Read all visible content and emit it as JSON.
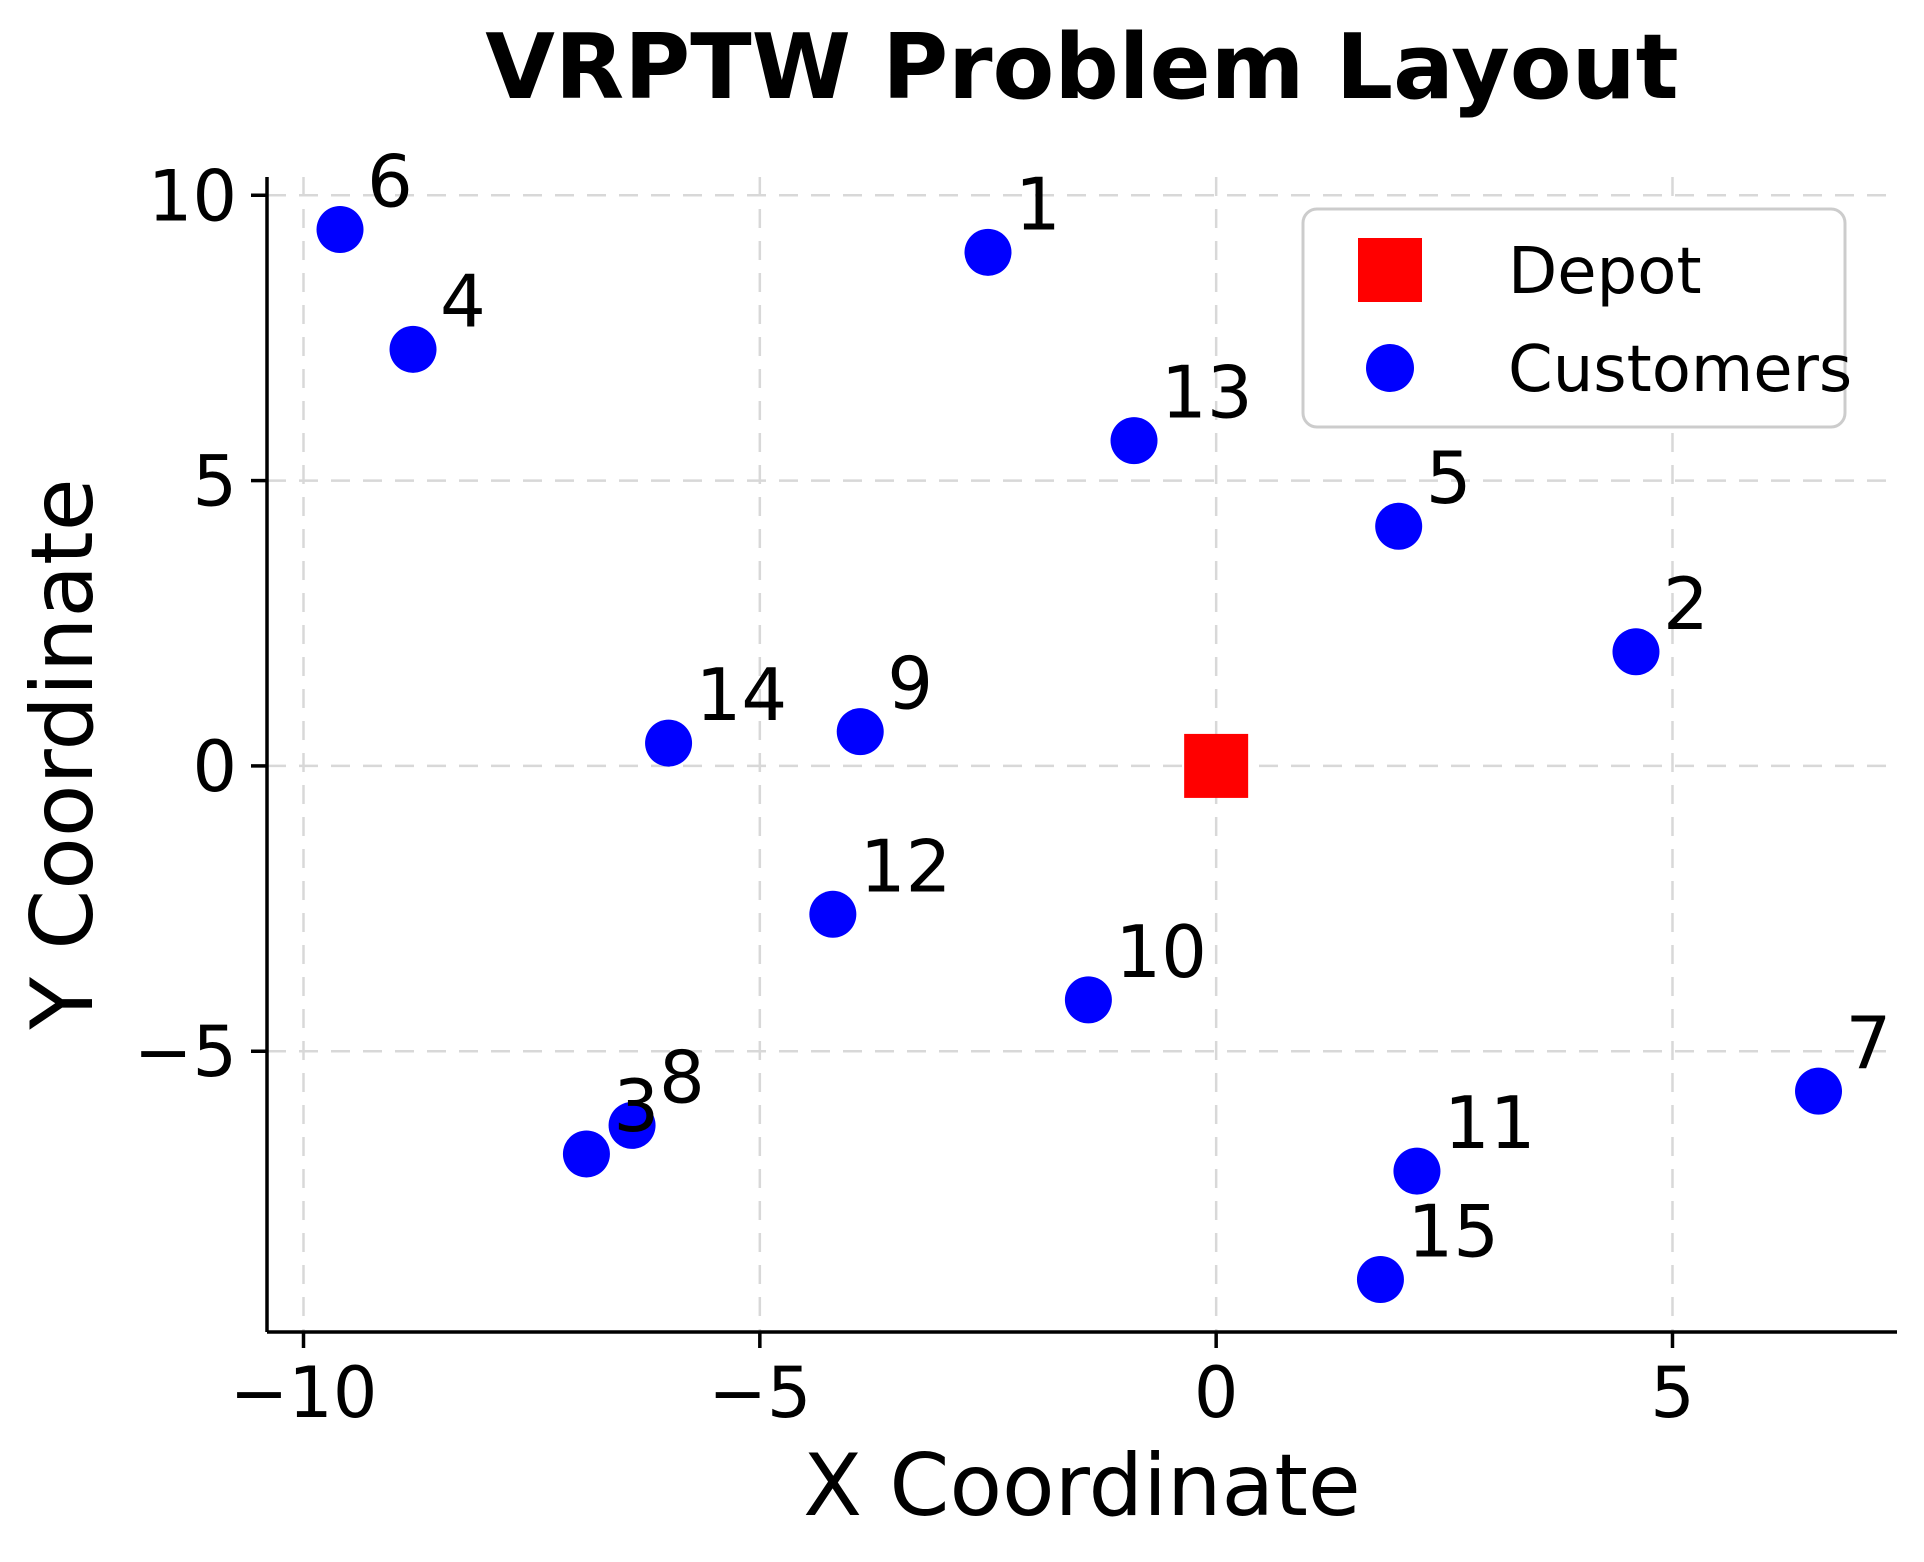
{
  "chart_data": {
    "type": "scatter",
    "title": "VRPTW Problem Layout",
    "xlabel": "X Coordinate",
    "ylabel": "Y Coordinate",
    "xlim": [
      -10.4,
      7.46
    ],
    "ylim": [
      -9.92,
      10.32
    ],
    "grid": true,
    "grid_style": "dashed",
    "xticks": {
      "values": [
        -10,
        -5,
        0,
        5
      ],
      "labels": [
        "−10",
        "−5",
        "0",
        "5"
      ]
    },
    "yticks": {
      "values": [
        -5,
        0,
        5,
        10
      ],
      "labels": [
        "−5",
        "0",
        "5",
        "10"
      ]
    },
    "legend": {
      "position": "upper right",
      "entries": [
        {
          "label": "Depot",
          "marker": "square",
          "color": "#ff0000"
        },
        {
          "label": "Customers",
          "marker": "circle",
          "color": "#0000ff"
        }
      ]
    },
    "depot": {
      "x": 0,
      "y": 0
    },
    "customers": [
      {
        "id": "1",
        "x": -2.5,
        "y": 9.0
      },
      {
        "id": "2",
        "x": 4.6,
        "y": 2.0
      },
      {
        "id": "3",
        "x": -6.9,
        "y": -6.8
      },
      {
        "id": "4",
        "x": -8.8,
        "y": 7.3
      },
      {
        "id": "5",
        "x": 2.0,
        "y": 4.2
      },
      {
        "id": "6",
        "x": -9.6,
        "y": 9.4
      },
      {
        "id": "7",
        "x": 6.6,
        "y": -5.7
      },
      {
        "id": "8",
        "x": -6.4,
        "y": -6.3
      },
      {
        "id": "9",
        "x": -3.9,
        "y": 0.6
      },
      {
        "id": "10",
        "x": -1.4,
        "y": -4.1
      },
      {
        "id": "11",
        "x": 2.2,
        "y": -7.1
      },
      {
        "id": "12",
        "x": -4.2,
        "y": -2.6
      },
      {
        "id": "13",
        "x": -0.9,
        "y": 5.7
      },
      {
        "id": "14",
        "x": -6.0,
        "y": 0.4
      },
      {
        "id": "15",
        "x": 1.8,
        "y": -9.0
      }
    ],
    "colors": {
      "customer": "#0000ff",
      "depot": "#ff0000",
      "grid": "#d8d8d8",
      "axis": "#000000",
      "legend_border": "#cccccc",
      "background": "#ffffff"
    }
  }
}
